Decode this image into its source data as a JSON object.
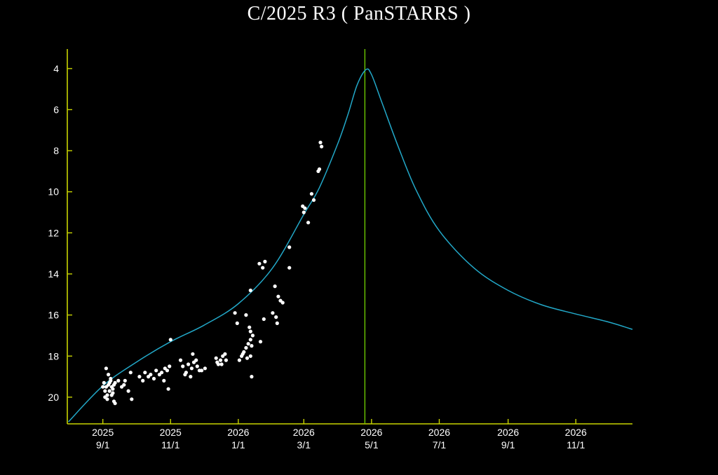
{
  "chart_data": {
    "type": "scatter",
    "title": "C/2025 R3 ( PanSTARRS )",
    "xlabel": "",
    "ylabel": "",
    "y_inverted": true,
    "ylim": [
      21.3,
      3.05
    ],
    "xlim": [
      "2025-07-31",
      "2026-12-22"
    ],
    "grid": false,
    "colors": {
      "background": "#000000",
      "axes": "#c8d400",
      "curve": "#22a8c8",
      "perihelion_line": "#6cc800",
      "points": "#ffffff",
      "text": "#ffffff"
    },
    "yticks": [
      4,
      6,
      8,
      10,
      12,
      14,
      16,
      18,
      20
    ],
    "xticks": [
      {
        "date": "2025-09-01",
        "year": "2025",
        "md": "9/1"
      },
      {
        "date": "2025-11-01",
        "year": "2025",
        "md": "11/1"
      },
      {
        "date": "2026-01-01",
        "year": "2026",
        "md": "1/1"
      },
      {
        "date": "2026-03-01",
        "year": "2026",
        "md": "3/1"
      },
      {
        "date": "2026-05-01",
        "year": "2026",
        "md": "5/1"
      },
      {
        "date": "2026-07-01",
        "year": "2026",
        "md": "7/1"
      },
      {
        "date": "2026-09-01",
        "year": "2026",
        "md": "9/1"
      },
      {
        "date": "2026-11-01",
        "year": "2026",
        "md": "11/1"
      }
    ],
    "vertical_line_date": "2026-04-25",
    "curve": {
      "x": [
        "2025-08-01",
        "2025-09-01",
        "2025-10-01",
        "2025-11-01",
        "2025-12-01",
        "2026-01-01",
        "2026-02-01",
        "2026-03-01",
        "2026-03-15",
        "2026-04-01",
        "2026-04-10",
        "2026-04-18",
        "2026-04-26",
        "2026-05-01",
        "2026-05-10",
        "2026-05-25",
        "2026-06-10",
        "2026-07-01",
        "2026-08-01",
        "2026-09-01",
        "2026-10-01",
        "2026-11-01",
        "2026-12-01",
        "2026-12-22"
      ],
      "y": [
        21.2,
        19.45,
        18.3,
        17.3,
        16.5,
        15.45,
        13.7,
        11.1,
        9.8,
        7.6,
        6.2,
        4.8,
        4.05,
        4.3,
        5.6,
        7.8,
        9.9,
        11.9,
        13.7,
        14.8,
        15.5,
        15.95,
        16.35,
        16.7
      ]
    },
    "series": [
      {
        "x": [
          "2025-09-01",
          "2025-09-02",
          "2025-09-03",
          "2025-09-04",
          "2025-09-05",
          "2025-09-06",
          "2025-09-07",
          "2025-09-08",
          "2025-09-09",
          "2025-09-10",
          "2025-09-11",
          "2025-09-12",
          "2025-09-03",
          "2025-09-05",
          "2025-09-07",
          "2025-09-09",
          "2025-09-11",
          "2025-09-04",
          "2025-09-06",
          "2025-09-08",
          "2025-09-10",
          "2025-09-12",
          "2025-09-15",
          "2025-09-18",
          "2025-09-21",
          "2025-09-24",
          "2025-09-27",
          "2025-09-20",
          "2025-09-26",
          "2025-10-04",
          "2025-10-07",
          "2025-10-09",
          "2025-10-12",
          "2025-10-14",
          "2025-10-17",
          "2025-10-19",
          "2025-10-22",
          "2025-10-24",
          "2025-10-27",
          "2025-10-29",
          "2025-10-31",
          "2025-10-26",
          "2025-10-30",
          "2025-11-01",
          "2025-11-10",
          "2025-11-12",
          "2025-11-15",
          "2025-11-17",
          "2025-11-20",
          "2025-11-22",
          "2025-11-25",
          "2025-11-27",
          "2025-11-14",
          "2025-11-19",
          "2025-11-24",
          "2025-11-29",
          "2025-12-02",
          "2025-11-21",
          "2025-12-12",
          "2025-12-14",
          "2025-12-16",
          "2025-12-18",
          "2025-12-13",
          "2025-12-17",
          "2025-12-21",
          "2025-12-20",
          "2025-12-29",
          "2025-12-31",
          "2026-01-02",
          "2026-01-04",
          "2026-01-06",
          "2026-01-08",
          "2026-01-10",
          "2026-01-12",
          "2026-01-14",
          "2026-01-05",
          "2026-01-09",
          "2026-01-13",
          "2026-01-08",
          "2026-01-11",
          "2026-01-12",
          "2026-01-13",
          "2026-01-12",
          "2026-01-20",
          "2026-01-23",
          "2026-01-25",
          "2026-01-12",
          "2026-01-21",
          "2026-02-03",
          "2026-02-06",
          "2026-02-08",
          "2026-02-10",
          "2026-01-24",
          "2026-02-01",
          "2026-02-04",
          "2026-02-05",
          "2026-02-16",
          "2026-02-16",
          "2026-02-28",
          "2026-03-01",
          "2026-03-02",
          "2026-03-05",
          "2026-03-08",
          "2026-03-10",
          "2026-03-15",
          "2026-03-14",
          "2026-03-16",
          "2026-03-17"
        ],
        "y": [
          19.5,
          19.3,
          19.7,
          19.5,
          19.9,
          19.4,
          19.3,
          19.1,
          19.5,
          19.8,
          19.4,
          19.3,
          20.0,
          20.1,
          19.7,
          19.9,
          20.2,
          18.6,
          18.9,
          19.2,
          19.6,
          20.3,
          19.2,
          19.5,
          19.2,
          19.7,
          20.1,
          19.4,
          18.8,
          19.0,
          19.2,
          18.8,
          19.0,
          18.9,
          19.1,
          18.7,
          18.9,
          18.8,
          18.6,
          18.7,
          18.5,
          19.2,
          19.6,
          17.2,
          18.2,
          18.5,
          18.8,
          18.4,
          18.6,
          18.3,
          18.5,
          18.7,
          18.9,
          19.0,
          18.2,
          18.7,
          18.6,
          17.9,
          18.1,
          18.4,
          18.2,
          18.0,
          18.3,
          18.4,
          18.2,
          17.9,
          15.9,
          16.4,
          18.2,
          18.0,
          17.8,
          17.6,
          17.4,
          17.2,
          17.0,
          17.9,
          18.1,
          17.5,
          16.0,
          16.6,
          16.8,
          19.0,
          14.8,
          13.5,
          13.7,
          13.4,
          18.0,
          17.3,
          14.6,
          15.1,
          15.3,
          15.4,
          16.2,
          15.9,
          16.1,
          16.4,
          13.7,
          12.7,
          10.7,
          11.0,
          10.8,
          11.5,
          10.1,
          10.4,
          8.9,
          9.0,
          7.6,
          7.8
        ]
      }
    ]
  }
}
